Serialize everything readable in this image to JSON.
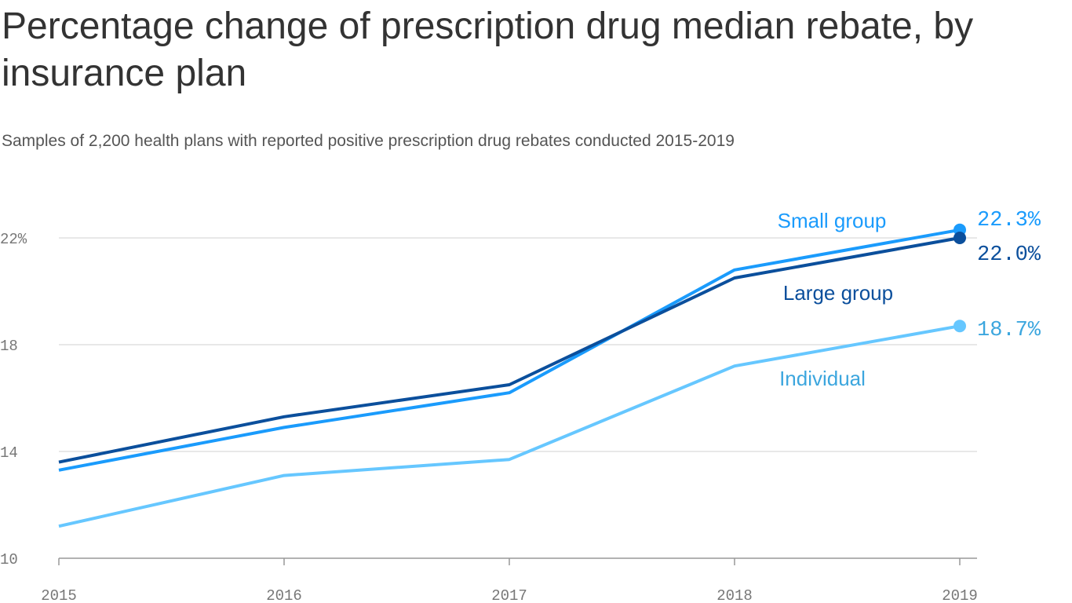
{
  "title": "Percentage change of prescription drug median rebate, by insurance plan",
  "subtitle": "Samples of 2,200 health plans with reported positive prescription drug rebates conducted 2015-2019",
  "chart_data": {
    "type": "line",
    "title": "Percentage change of prescription drug median rebate, by insurance plan",
    "subtitle": "Samples of 2,200 health plans with reported positive prescription drug rebates conducted 2015-2019",
    "x": [
      "2015",
      "2016",
      "2017",
      "2018",
      "2019"
    ],
    "ylim": [
      10,
      23
    ],
    "yticks": [
      10,
      14,
      18,
      22
    ],
    "ytick_labels": [
      "10",
      "14",
      "18",
      "22%"
    ],
    "grid": true,
    "legend": "inline labels",
    "series": [
      {
        "name": "Small group",
        "values": [
          13.3,
          14.9,
          16.2,
          20.8,
          22.3
        ],
        "end_label": "22.3%",
        "color": "#1a9bfc",
        "label_color": "#1a9bfc"
      },
      {
        "name": "Large group",
        "values": [
          13.6,
          15.3,
          16.5,
          20.5,
          22.0
        ],
        "end_label": "22.0%",
        "color": "#0b4f9c",
        "label_color": "#0b4f9c"
      },
      {
        "name": "Individual",
        "values": [
          11.2,
          13.1,
          13.7,
          17.2,
          18.7
        ],
        "end_label": "18.7%",
        "color": "#66c7ff",
        "label_color": "#3ca6de"
      }
    ]
  }
}
